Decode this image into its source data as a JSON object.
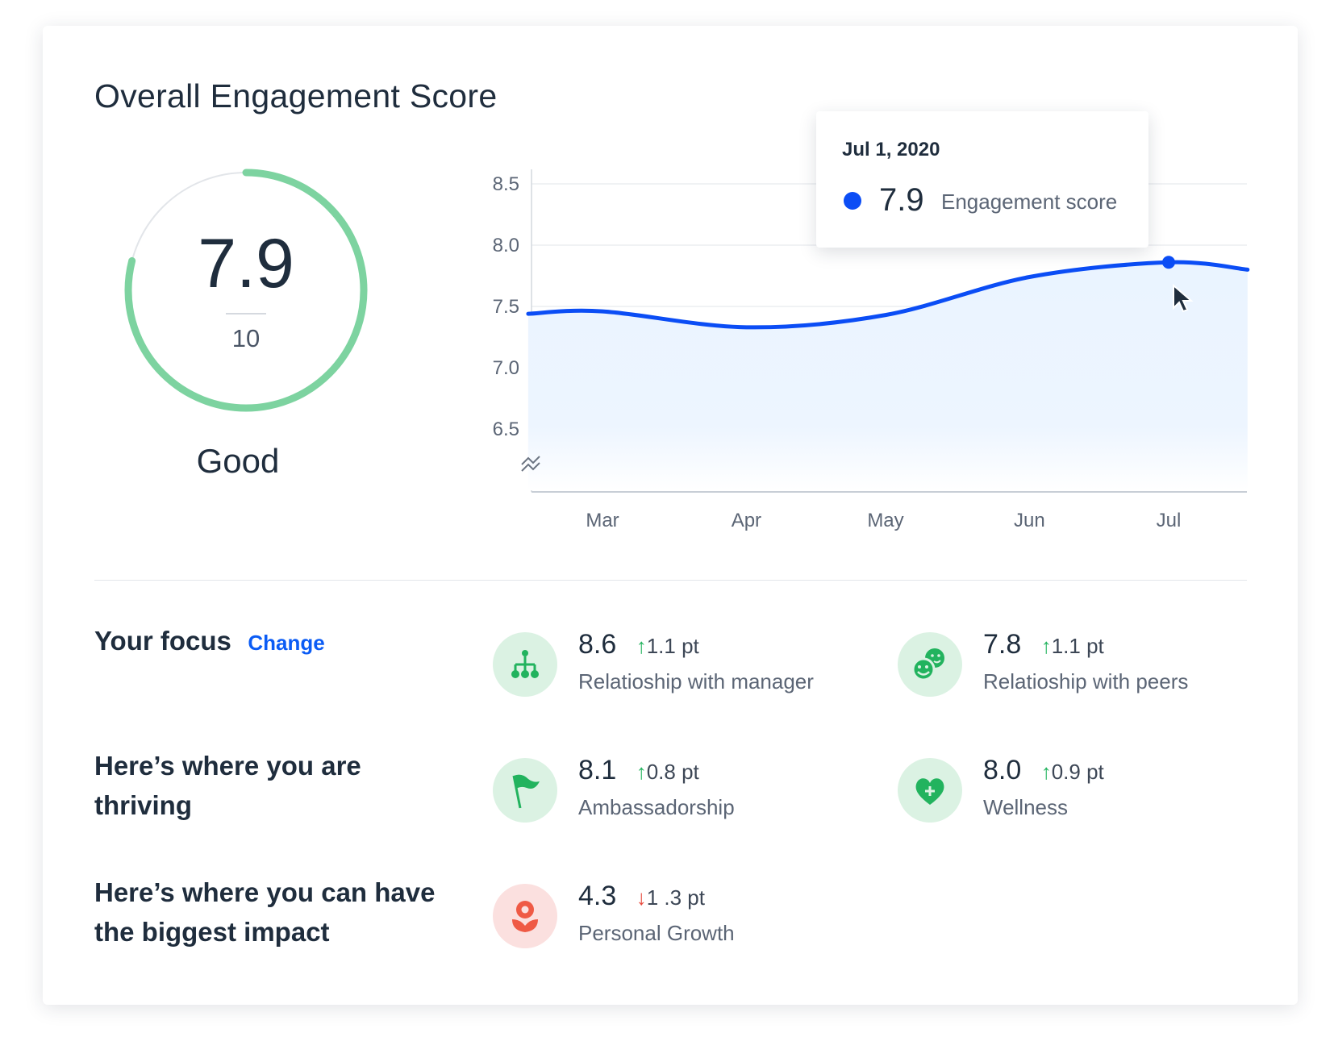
{
  "title": "Overall Engagement Score",
  "gauge": {
    "score": "7.9",
    "max": "10",
    "fraction": 0.79,
    "rating": "Good",
    "color": "#7dd3a0"
  },
  "tooltip": {
    "date": "Jul 1, 2020",
    "value": "7.9",
    "label": "Engagement score",
    "dot_color": "#0b4df5"
  },
  "chart_data": {
    "type": "area",
    "xlabel": "",
    "ylabel": "",
    "y_ticks": [
      "8.5",
      "8.0",
      "7.5",
      "7.0",
      "6.5"
    ],
    "ylim": [
      6.3,
      8.5
    ],
    "y_axis_break": true,
    "x_ticks": [
      "Mar",
      "Apr",
      "May",
      "Jun",
      "Jul"
    ],
    "grid": "horizontal",
    "line_color": "#0b4df5",
    "fill_color": "#eaf4ff",
    "points": [
      {
        "x": "2020-02-14",
        "y": 7.44
      },
      {
        "x": "2020-03-01",
        "y": 7.46
      },
      {
        "x": "2020-04-01",
        "y": 7.33
      },
      {
        "x": "2020-05-01",
        "y": 7.43
      },
      {
        "x": "2020-06-01",
        "y": 7.74
      },
      {
        "x": "2020-07-01",
        "y": 7.86
      },
      {
        "x": "2020-07-18",
        "y": 7.8
      }
    ],
    "highlighted": {
      "x": "2020-07-01",
      "y": 7.9
    }
  },
  "focus": {
    "label": "Your focus",
    "change": "Change"
  },
  "thriving": {
    "label": "Here’s where you are thriving"
  },
  "impact": {
    "label": "Here’s where you can have the biggest impact"
  },
  "metrics": [
    {
      "value": "8.6",
      "delta": "1.1 pt",
      "direction": "up",
      "label": "Relatioship with manager",
      "icon": "org-chart-icon"
    },
    {
      "value": "7.8",
      "delta": "1.1 pt",
      "direction": "up",
      "label": "Relatioship with peers",
      "icon": "smiley-faces-icon"
    },
    {
      "value": "8.1",
      "delta": "0.8 pt",
      "direction": "up",
      "label": "Ambassadorship",
      "icon": "flag-icon"
    },
    {
      "value": "8.0",
      "delta": "0.9 pt",
      "direction": "up",
      "label": "Wellness",
      "icon": "heart-plus-icon"
    },
    {
      "value": "4.3",
      "delta": "1 .3 pt",
      "direction": "down",
      "label": "Personal Growth",
      "icon": "flower-icon"
    }
  ],
  "arrows": {
    "up": "↑",
    "down": "↓"
  },
  "colors": {
    "positive": "#22b35e",
    "negative": "#e8493c",
    "accent": "#0b5cf5"
  }
}
